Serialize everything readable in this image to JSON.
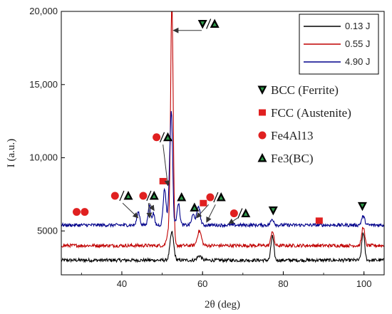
{
  "chart_data": {
    "type": "line",
    "xlabel": "2θ (deg)",
    "ylabel": "I (a.u.)",
    "xlim": [
      25,
      105
    ],
    "ylim": [
      2000,
      20000
    ],
    "x_ticks": [
      {
        "v": 40,
        "label": "40"
      },
      {
        "v": 60,
        "label": "60"
      },
      {
        "v": 80,
        "label": "80"
      },
      {
        "v": 100,
        "label": "100"
      }
    ],
    "y_ticks": [
      {
        "v": 5000,
        "label": "5000"
      },
      {
        "v": 10000,
        "label": "10,000"
      },
      {
        "v": 15000,
        "label": "15,000"
      },
      {
        "v": 20000,
        "label": "20,000"
      }
    ],
    "legend_position": "top-right",
    "series": [
      {
        "name": "0.13 J",
        "color": "#000000",
        "baseline": 3000,
        "peaks": [
          [
            52.4,
            1900,
            0.45
          ],
          [
            59.2,
            300,
            0.5
          ],
          [
            77.3,
            1650,
            0.35
          ],
          [
            99.8,
            1900,
            0.35
          ]
        ]
      },
      {
        "name": "0.55 J",
        "color": "#c00000",
        "baseline": 4000,
        "peaks": [
          [
            52.4,
            16500,
            0.32
          ],
          [
            51.5,
            900,
            0.4
          ],
          [
            59.2,
            1000,
            0.5
          ],
          [
            77.3,
            1000,
            0.35
          ],
          [
            99.8,
            1300,
            0.35
          ]
        ]
      },
      {
        "name": "4.90 J",
        "color": "#00008b",
        "baseline": 5400,
        "peaks": [
          [
            44.1,
            900,
            0.35
          ],
          [
            46.8,
            1400,
            0.3
          ],
          [
            47.8,
            800,
            0.3
          ],
          [
            50.6,
            2500,
            0.35
          ],
          [
            51.8,
            2300,
            0.3
          ],
          [
            52.3,
            7200,
            0.3
          ],
          [
            54.0,
            1500,
            0.35
          ],
          [
            57.7,
            700,
            0.4
          ],
          [
            59.0,
            1300,
            0.4
          ],
          [
            77.3,
            400,
            0.4
          ],
          [
            99.8,
            600,
            0.4
          ]
        ]
      }
    ],
    "phase_legend": [
      {
        "symbol": "triangle-down",
        "color": "#000000",
        "label": "BCC (Ferrite)"
      },
      {
        "symbol": "square",
        "color": "#e02020",
        "label": "FCC (Austenite)"
      },
      {
        "symbol": "circle",
        "color": "#e02020",
        "label": "Fe4Al13"
      },
      {
        "symbol": "triangle-up",
        "color": "#000000",
        "label": "Fe3(BC)"
      }
    ],
    "peak_markers": [
      {
        "symbol": "circle",
        "x": 28.8,
        "y": 6300
      },
      {
        "symbol": "circle",
        "x": 30.8,
        "y": 6300
      },
      {
        "symbol": "circle",
        "x": 38.3,
        "y": 7400
      },
      {
        "symbol": "triangle-up",
        "x": 41.6,
        "y": 7400
      },
      {
        "symbol": "circle",
        "x": 45.3,
        "y": 7400
      },
      {
        "symbol": "triangle-up",
        "x": 48.0,
        "y": 7400
      },
      {
        "symbol": "square",
        "x": 50.2,
        "y": 8400
      },
      {
        "symbol": "circle",
        "x": 48.6,
        "y": 11400
      },
      {
        "symbol": "triangle-up",
        "x": 51.4,
        "y": 11400
      },
      {
        "symbol": "triangle-up",
        "x": 54.8,
        "y": 7300
      },
      {
        "symbol": "triangle-down",
        "x": 60.0,
        "y": 19150
      },
      {
        "symbol": "triangle-up",
        "x": 63.0,
        "y": 19150
      },
      {
        "symbol": "triangle-up",
        "x": 58.0,
        "y": 6600
      },
      {
        "symbol": "square",
        "x": 60.2,
        "y": 6900
      },
      {
        "symbol": "circle",
        "x": 61.9,
        "y": 7300
      },
      {
        "symbol": "triangle-up",
        "x": 64.6,
        "y": 7300
      },
      {
        "symbol": "circle",
        "x": 67.8,
        "y": 6200
      },
      {
        "symbol": "triangle-up",
        "x": 70.7,
        "y": 6200
      },
      {
        "symbol": "triangle-down",
        "x": 77.5,
        "y": 6400
      },
      {
        "symbol": "square",
        "x": 88.9,
        "y": 5700
      },
      {
        "symbol": "triangle-down",
        "x": 99.6,
        "y": 6700
      }
    ],
    "slash_markers": [
      {
        "x": 40.0,
        "y": 7400
      },
      {
        "x": 46.7,
        "y": 7400
      },
      {
        "x": 50.0,
        "y": 11400
      },
      {
        "x": 61.5,
        "y": 19150
      },
      {
        "x": 63.3,
        "y": 7300
      },
      {
        "x": 69.3,
        "y": 6200
      }
    ],
    "arrows": [
      {
        "from": [
          40.2,
          6900
        ],
        "to": [
          44.0,
          5900
        ]
      },
      {
        "from": [
          46.6,
          6900
        ],
        "to": [
          46.9,
          5900
        ]
      },
      {
        "from": [
          46.8,
          6900
        ],
        "to": [
          48.0,
          6400
        ]
      },
      {
        "from": [
          50.2,
          10900
        ],
        "to": [
          51.4,
          8100
        ]
      },
      {
        "from": [
          59.8,
          18700
        ],
        "to": [
          52.8,
          18700
        ]
      },
      {
        "from": [
          61.5,
          6800
        ],
        "to": [
          58.5,
          5900
        ]
      },
      {
        "from": [
          63.2,
          6800
        ],
        "to": [
          61.0,
          5600
        ]
      },
      {
        "from": [
          68.8,
          5900
        ],
        "to": [
          66.5,
          5500
        ]
      }
    ]
  }
}
